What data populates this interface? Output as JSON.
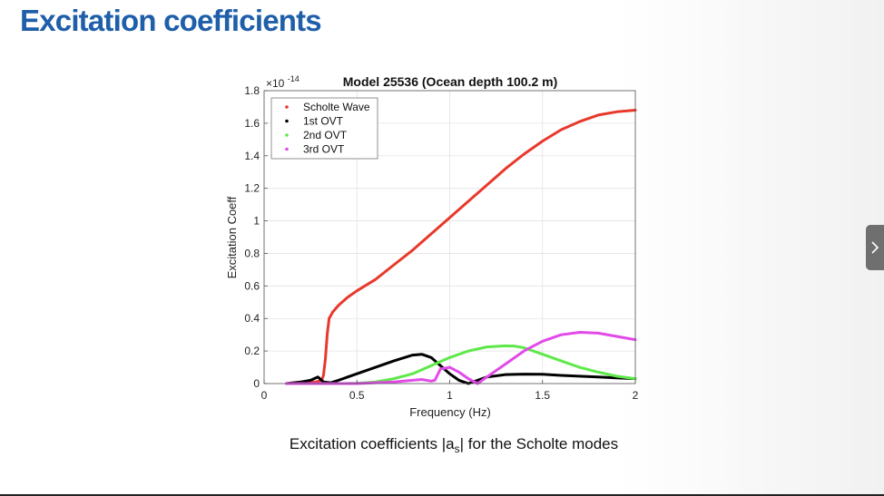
{
  "slide": {
    "title": "Excitation coefficients",
    "caption_prefix": "Excitation coefficients |a",
    "caption_sub": "s",
    "caption_suffix": "| for the Scholte modes"
  },
  "nav": {
    "next_icon": "chevron-right-icon"
  },
  "chart_data": {
    "type": "line",
    "title": "Model 25536 (Ocean depth 100.2 m)",
    "xlabel": "Frequency (Hz)",
    "ylabel": "Excitation Coeff",
    "y_exponent_base": "×10",
    "y_exponent_power": "-14",
    "xlim": [
      0,
      2
    ],
    "ylim": [
      0,
      1.8
    ],
    "xticks": [
      0,
      0.5,
      1,
      1.5,
      2
    ],
    "xtick_labels": [
      "0",
      "0.5",
      "1",
      "1.5",
      "2"
    ],
    "yticks": [
      0,
      0.2,
      0.4,
      0.6,
      0.8,
      1,
      1.2,
      1.4,
      1.6,
      1.8
    ],
    "ytick_labels": [
      "0",
      "0.2",
      "0.4",
      "0.6",
      "0.8",
      "1",
      "1.2",
      "1.4",
      "1.6",
      "1.8"
    ],
    "grid": true,
    "legend_position": "top-left",
    "series": [
      {
        "name": "Scholte Wave",
        "color": "#e8392b",
        "x": [
          0.12,
          0.2,
          0.28,
          0.31,
          0.32,
          0.33,
          0.34,
          0.35,
          0.37,
          0.4,
          0.45,
          0.5,
          0.6,
          0.7,
          0.8,
          0.9,
          1.0,
          1.1,
          1.2,
          1.3,
          1.4,
          1.5,
          1.6,
          1.7,
          1.8,
          1.9,
          2.0
        ],
        "y": [
          0.0,
          0.01,
          0.01,
          0.02,
          0.05,
          0.15,
          0.3,
          0.4,
          0.44,
          0.48,
          0.53,
          0.57,
          0.64,
          0.73,
          0.82,
          0.92,
          1.02,
          1.12,
          1.22,
          1.32,
          1.41,
          1.49,
          1.56,
          1.61,
          1.65,
          1.67,
          1.68
        ]
      },
      {
        "name": "1st OVT",
        "color": "#000000",
        "x": [
          0.12,
          0.2,
          0.25,
          0.29,
          0.32,
          0.36,
          0.4,
          0.5,
          0.6,
          0.7,
          0.8,
          0.85,
          0.9,
          0.95,
          1.0,
          1.05,
          1.1,
          1.15,
          1.2,
          1.3,
          1.4,
          1.5,
          1.6,
          1.7,
          1.8,
          1.9,
          2.0
        ],
        "y": [
          0.0,
          0.01,
          0.02,
          0.04,
          0.01,
          0.005,
          0.02,
          0.06,
          0.1,
          0.14,
          0.175,
          0.18,
          0.16,
          0.11,
          0.06,
          0.02,
          0.0,
          0.02,
          0.04,
          0.055,
          0.058,
          0.057,
          0.05,
          0.045,
          0.04,
          0.035,
          0.03
        ]
      },
      {
        "name": "2nd OVT",
        "color": "#5ee84a",
        "x": [
          0.12,
          0.3,
          0.4,
          0.5,
          0.6,
          0.7,
          0.8,
          0.9,
          1.0,
          1.1,
          1.2,
          1.3,
          1.35,
          1.4,
          1.5,
          1.6,
          1.7,
          1.8,
          1.9,
          2.0
        ],
        "y": [
          0.0,
          0.0,
          0.0,
          0.002,
          0.01,
          0.03,
          0.06,
          0.11,
          0.16,
          0.2,
          0.225,
          0.232,
          0.23,
          0.22,
          0.18,
          0.14,
          0.1,
          0.07,
          0.045,
          0.03
        ]
      },
      {
        "name": "3rd OVT",
        "color": "#e24ae8",
        "x": [
          0.12,
          0.3,
          0.5,
          0.6,
          0.7,
          0.8,
          0.85,
          0.9,
          0.92,
          0.95,
          1.0,
          1.05,
          1.1,
          1.15,
          1.2,
          1.3,
          1.4,
          1.5,
          1.6,
          1.7,
          1.8,
          1.9,
          2.0
        ],
        "y": [
          0.0,
          0.0,
          0.0,
          0.005,
          0.01,
          0.02,
          0.025,
          0.015,
          0.02,
          0.09,
          0.1,
          0.07,
          0.03,
          0.0,
          0.04,
          0.12,
          0.2,
          0.26,
          0.3,
          0.315,
          0.31,
          0.29,
          0.27
        ]
      }
    ]
  }
}
